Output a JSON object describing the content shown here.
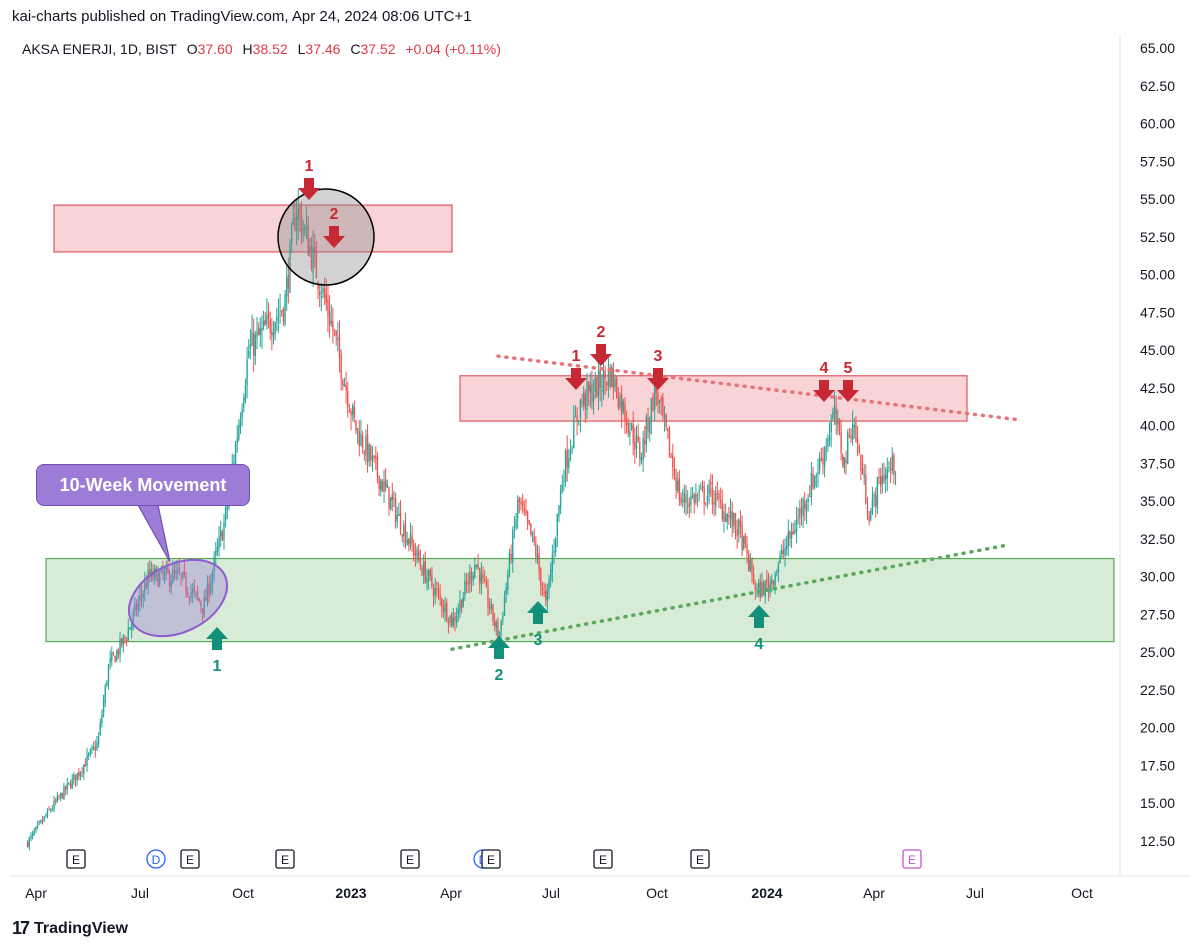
{
  "header": {
    "published": "kai-charts published on TradingView.com, Apr 24, 2024 08:06 UTC+1"
  },
  "symbol": {
    "label": "AKSA ENERJI, 1D, BIST",
    "o_key": "O",
    "o": "37.60",
    "h_key": "H",
    "h": "38.52",
    "l_key": "L",
    "l": "37.46",
    "c_key": "C",
    "c": "37.52",
    "change": "+0.04 (+0.11%)"
  },
  "annotations": {
    "callout": "10-Week Movement",
    "top_arrows": [
      "1",
      "2"
    ],
    "resistance_arrows": [
      "1",
      "2",
      "3",
      "4",
      "5"
    ],
    "support_arrows": [
      "1",
      "2",
      "3",
      "4"
    ]
  },
  "event_markers": [
    "E",
    "D",
    "E",
    "E",
    "E",
    "D",
    "E",
    "E",
    "E",
    "E"
  ],
  "footer": {
    "brand": "TradingView"
  },
  "colors": {
    "up": "#26a69a",
    "down": "#ef5350",
    "resistance_zone": "#f8c9cc",
    "support_zone": "#cde6cd",
    "arrow_red": "#c62834",
    "arrow_green": "#13907a",
    "purple": "#9c7cd6"
  },
  "chart_data": {
    "type": "candlestick",
    "title": "AKSA ENERJI, 1D, BIST",
    "x_ticks": [
      "Apr",
      "Jul",
      "Oct",
      "2023",
      "Apr",
      "Jul",
      "Oct",
      "2024",
      "Apr",
      "Jul",
      "Oct"
    ],
    "y_ticks": [
      "65.00",
      "62.50",
      "60.00",
      "57.50",
      "55.00",
      "52.50",
      "50.00",
      "47.50",
      "45.00",
      "42.50",
      "40.00",
      "37.50",
      "35.00",
      "32.50",
      "30.00",
      "27.50",
      "25.00",
      "22.50",
      "20.00",
      "17.50",
      "15.00",
      "12.50"
    ],
    "ylim": [
      11.5,
      65.5
    ],
    "price_path": [
      [
        "2022-04-01",
        12.4
      ],
      [
        "2022-04-20",
        14.5
      ],
      [
        "2022-05-15",
        17.0
      ],
      [
        "2022-06-01",
        19.0
      ],
      [
        "2022-06-10",
        24.0
      ],
      [
        "2022-06-25",
        26.0
      ],
      [
        "2022-07-15",
        30.0
      ],
      [
        "2022-08-10",
        30.0
      ],
      [
        "2022-09-01",
        28.0
      ],
      [
        "2022-09-20",
        34.0
      ],
      [
        "2022-10-10",
        45.0
      ],
      [
        "2022-11-10",
        48.0
      ],
      [
        "2022-11-20",
        54.5
      ],
      [
        "2022-12-01",
        52.0
      ],
      [
        "2022-12-20",
        47.0
      ],
      [
        "2023-01-10",
        40.0
      ],
      [
        "2023-02-10",
        35.0
      ],
      [
        "2023-03-10",
        30.5
      ],
      [
        "2023-04-05",
        27.0
      ],
      [
        "2023-04-25",
        31.0
      ],
      [
        "2023-05-15",
        26.0
      ],
      [
        "2023-06-01",
        35.0
      ],
      [
        "2023-06-15",
        32.0
      ],
      [
        "2023-06-25",
        28.0
      ],
      [
        "2023-07-10",
        37.0
      ],
      [
        "2023-07-25",
        41.5
      ],
      [
        "2023-08-20",
        43.5
      ],
      [
        "2023-09-15",
        38.0
      ],
      [
        "2023-09-28",
        42.5
      ],
      [
        "2023-10-20",
        35.0
      ],
      [
        "2023-11-15",
        35.5
      ],
      [
        "2023-12-10",
        33.0
      ],
      [
        "2023-12-25",
        29.0
      ],
      [
        "2024-01-05",
        29.5
      ],
      [
        "2024-01-25",
        33.0
      ],
      [
        "2024-02-20",
        38.0
      ],
      [
        "2024-03-01",
        40.8
      ],
      [
        "2024-03-10",
        37.5
      ],
      [
        "2024-03-17",
        40.5
      ],
      [
        "2024-04-01",
        34.0
      ],
      [
        "2024-04-10",
        36.5
      ],
      [
        "2024-04-24",
        37.52
      ]
    ],
    "zones": [
      {
        "name": "top resistance",
        "from": "2022-04-05",
        "to": "2023-03-01",
        "low": 51.5,
        "high": 54.6
      },
      {
        "name": "resistance",
        "from": "2023-04-20",
        "to": "2024-05-30",
        "low": 40.3,
        "high": 43.3
      },
      {
        "name": "support",
        "from": "2022-04-01",
        "to": "2024-10-20",
        "low": 25.7,
        "high": 31.2
      }
    ],
    "trendlines": [
      {
        "name": "descending resistance",
        "from": [
          "2023-04-15",
          44.6
        ],
        "to": [
          "2024-07-15",
          40.4
        ]
      },
      {
        "name": "ascending support",
        "from": [
          "2023-04-15",
          25.2
        ],
        "to": [
          "2024-07-15",
          32.1
        ]
      }
    ]
  }
}
